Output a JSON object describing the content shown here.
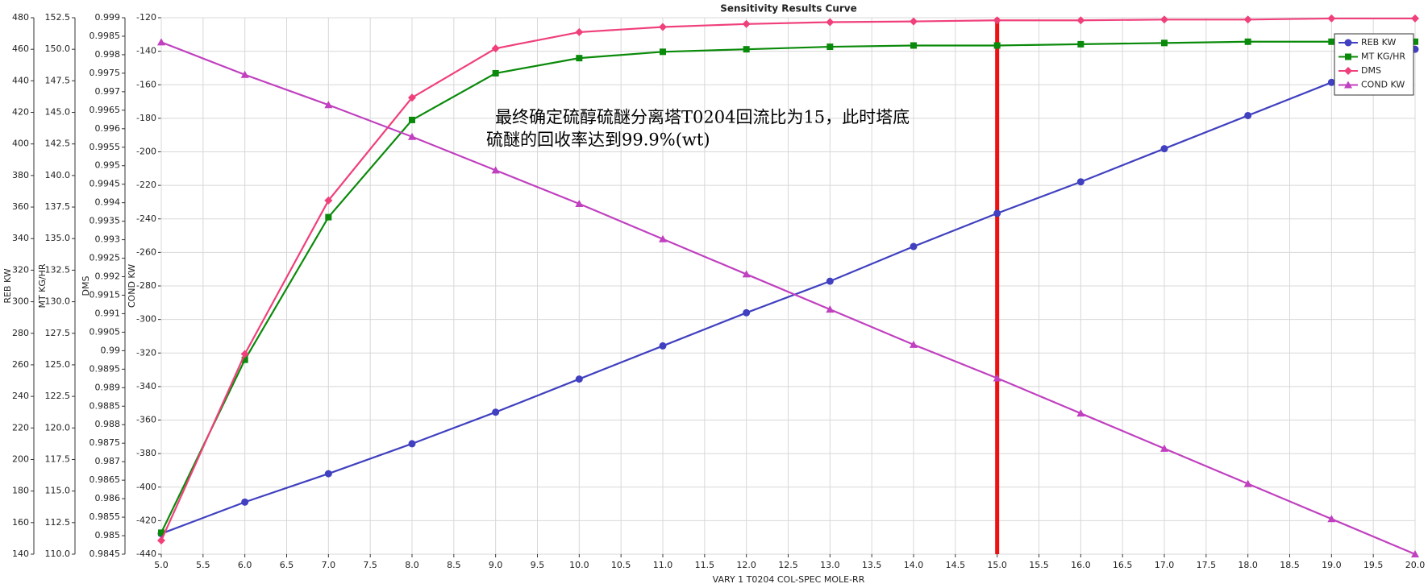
{
  "chart_data": {
    "type": "line",
    "title": "Sensitivity Results Curve",
    "xlabel": "VARY   1 T0204 COL-SPEC MOLE-RR",
    "ylabel": "REB KW",
    "y2label": "MT KG/HR",
    "y3label": "DMS",
    "y4label": "COND KW",
    "x": [
      5,
      6,
      7,
      8,
      9,
      10,
      11,
      12,
      13,
      14,
      15,
      16,
      17,
      18,
      19,
      20
    ],
    "xlim": [
      5,
      20
    ],
    "xticks": [
      {
        "value": 5,
        "label": "5.0"
      },
      {
        "value": 5.5,
        "label": "5.5"
      },
      {
        "value": 6,
        "label": "6.0"
      },
      {
        "value": 6.5,
        "label": "6.5"
      },
      {
        "value": 7,
        "label": "7.0"
      },
      {
        "value": 7.5,
        "label": "7.5"
      },
      {
        "value": 8,
        "label": "8.0"
      },
      {
        "value": 8.5,
        "label": "8.5"
      },
      {
        "value": 9,
        "label": "9.0"
      },
      {
        "value": 9.5,
        "label": "9.5"
      },
      {
        "value": 10,
        "label": "10.0"
      },
      {
        "value": 10.5,
        "label": "10.5"
      },
      {
        "value": 11,
        "label": "11.0"
      },
      {
        "value": 11.5,
        "label": "11.5"
      },
      {
        "value": 12,
        "label": "12.0"
      },
      {
        "value": 12.5,
        "label": "12.5"
      },
      {
        "value": 13,
        "label": "13.0"
      },
      {
        "value": 13.5,
        "label": "13.5"
      },
      {
        "value": 14,
        "label": "14.0"
      },
      {
        "value": 14.5,
        "label": "14.5"
      },
      {
        "value": 15,
        "label": "15.0"
      },
      {
        "value": 15.5,
        "label": "15.5"
      },
      {
        "value": 16,
        "label": "16.0"
      },
      {
        "value": 16.5,
        "label": "16.5"
      },
      {
        "value": 17,
        "label": "17.0"
      },
      {
        "value": 17.5,
        "label": "17.5"
      },
      {
        "value": 18,
        "label": "18.0"
      },
      {
        "value": 18.5,
        "label": "18.5"
      },
      {
        "value": 19,
        "label": "19.0"
      },
      {
        "value": 19.5,
        "label": "19.5"
      },
      {
        "value": 20,
        "label": "20.0"
      }
    ],
    "ylim": [
      140,
      480
    ],
    "yticks": [
      140,
      160,
      180,
      200,
      220,
      240,
      260,
      280,
      300,
      320,
      340,
      360,
      380,
      400,
      420,
      440,
      460,
      480
    ],
    "y2lim": [
      110,
      152.5
    ],
    "y2ticks": [
      {
        "value": 110,
        "label": "110.0"
      },
      {
        "value": 112.5,
        "label": "112.5"
      },
      {
        "value": 115,
        "label": "115.0"
      },
      {
        "value": 117.5,
        "label": "117.5"
      },
      {
        "value": 120,
        "label": "120.0"
      },
      {
        "value": 122.5,
        "label": "122.5"
      },
      {
        "value": 125,
        "label": "125.0"
      },
      {
        "value": 127.5,
        "label": "127.5"
      },
      {
        "value": 130,
        "label": "130.0"
      },
      {
        "value": 132.5,
        "label": "132.5"
      },
      {
        "value": 135,
        "label": "135.0"
      },
      {
        "value": 137.5,
        "label": "137.5"
      },
      {
        "value": 140,
        "label": "140.0"
      },
      {
        "value": 142.5,
        "label": "142.5"
      },
      {
        "value": 145,
        "label": "145.0"
      },
      {
        "value": 147.5,
        "label": "147.5"
      },
      {
        "value": 150,
        "label": "150.0"
      },
      {
        "value": 152.5,
        "label": "152.5"
      }
    ],
    "y3lim": [
      0.9845,
      0.999
    ],
    "y3ticks": [
      0.9845,
      0.985,
      0.9855,
      0.986,
      0.9865,
      0.987,
      0.9875,
      0.988,
      0.9885,
      0.989,
      0.9895,
      0.99,
      0.9905,
      0.991,
      0.9915,
      0.992,
      0.9925,
      0.993,
      0.9935,
      0.994,
      0.9945,
      0.995,
      0.9955,
      0.996,
      0.9965,
      0.997,
      0.9975,
      0.998,
      0.9985,
      0.999
    ],
    "y4lim": [
      -440,
      -120
    ],
    "y4ticks": [
      -440,
      -420,
      -400,
      -380,
      -360,
      -340,
      -320,
      -300,
      -280,
      -260,
      -240,
      -220,
      -200,
      -180,
      -160,
      -140,
      -120
    ],
    "grid": true,
    "legend": "top-right",
    "series": [
      {
        "name": "REB KW",
        "color": "#4040c0",
        "axis": "y",
        "marker": "circle",
        "values": [
          153,
          173,
          191,
          210,
          230,
          251,
          272,
          293,
          313,
          335,
          356,
          376,
          397,
          418,
          439,
          460
        ]
      },
      {
        "name": "MT KG/HR",
        "color": "#0a8a0a",
        "axis": "y2",
        "marker": "square",
        "values": [
          111.7,
          125.4,
          136.7,
          144.4,
          148.1,
          149.3,
          149.8,
          150.0,
          150.2,
          150.3,
          150.3,
          150.4,
          150.5,
          150.6,
          150.6,
          150.6
        ]
      },
      {
        "name": "DMS",
        "color": "#f0407a",
        "axis": "y3",
        "marker": "diamond",
        "values": [
          0.98487,
          0.98991,
          0.99406,
          0.99684,
          0.99817,
          0.99861,
          0.99875,
          0.99883,
          0.99888,
          0.9989,
          0.99893,
          0.99893,
          0.99895,
          0.99895,
          0.99898,
          0.99898
        ]
      },
      {
        "name": "COND KW",
        "color": "#c040c0",
        "axis": "y4",
        "marker": "triangle",
        "values": [
          -134.6,
          -154,
          -172,
          -191,
          -211,
          -231,
          -252,
          -273,
          -294,
          -315,
          -335,
          -356,
          -377,
          -398,
          -419,
          -440
        ]
      }
    ],
    "vline_x": 15,
    "vline_color": "#ee1111",
    "annotation": [
      "最终确定硫醇硫醚分离塔T0204回流比为15，此时塔底",
      "硫醚的回收率达到99.9%(wt)"
    ]
  }
}
